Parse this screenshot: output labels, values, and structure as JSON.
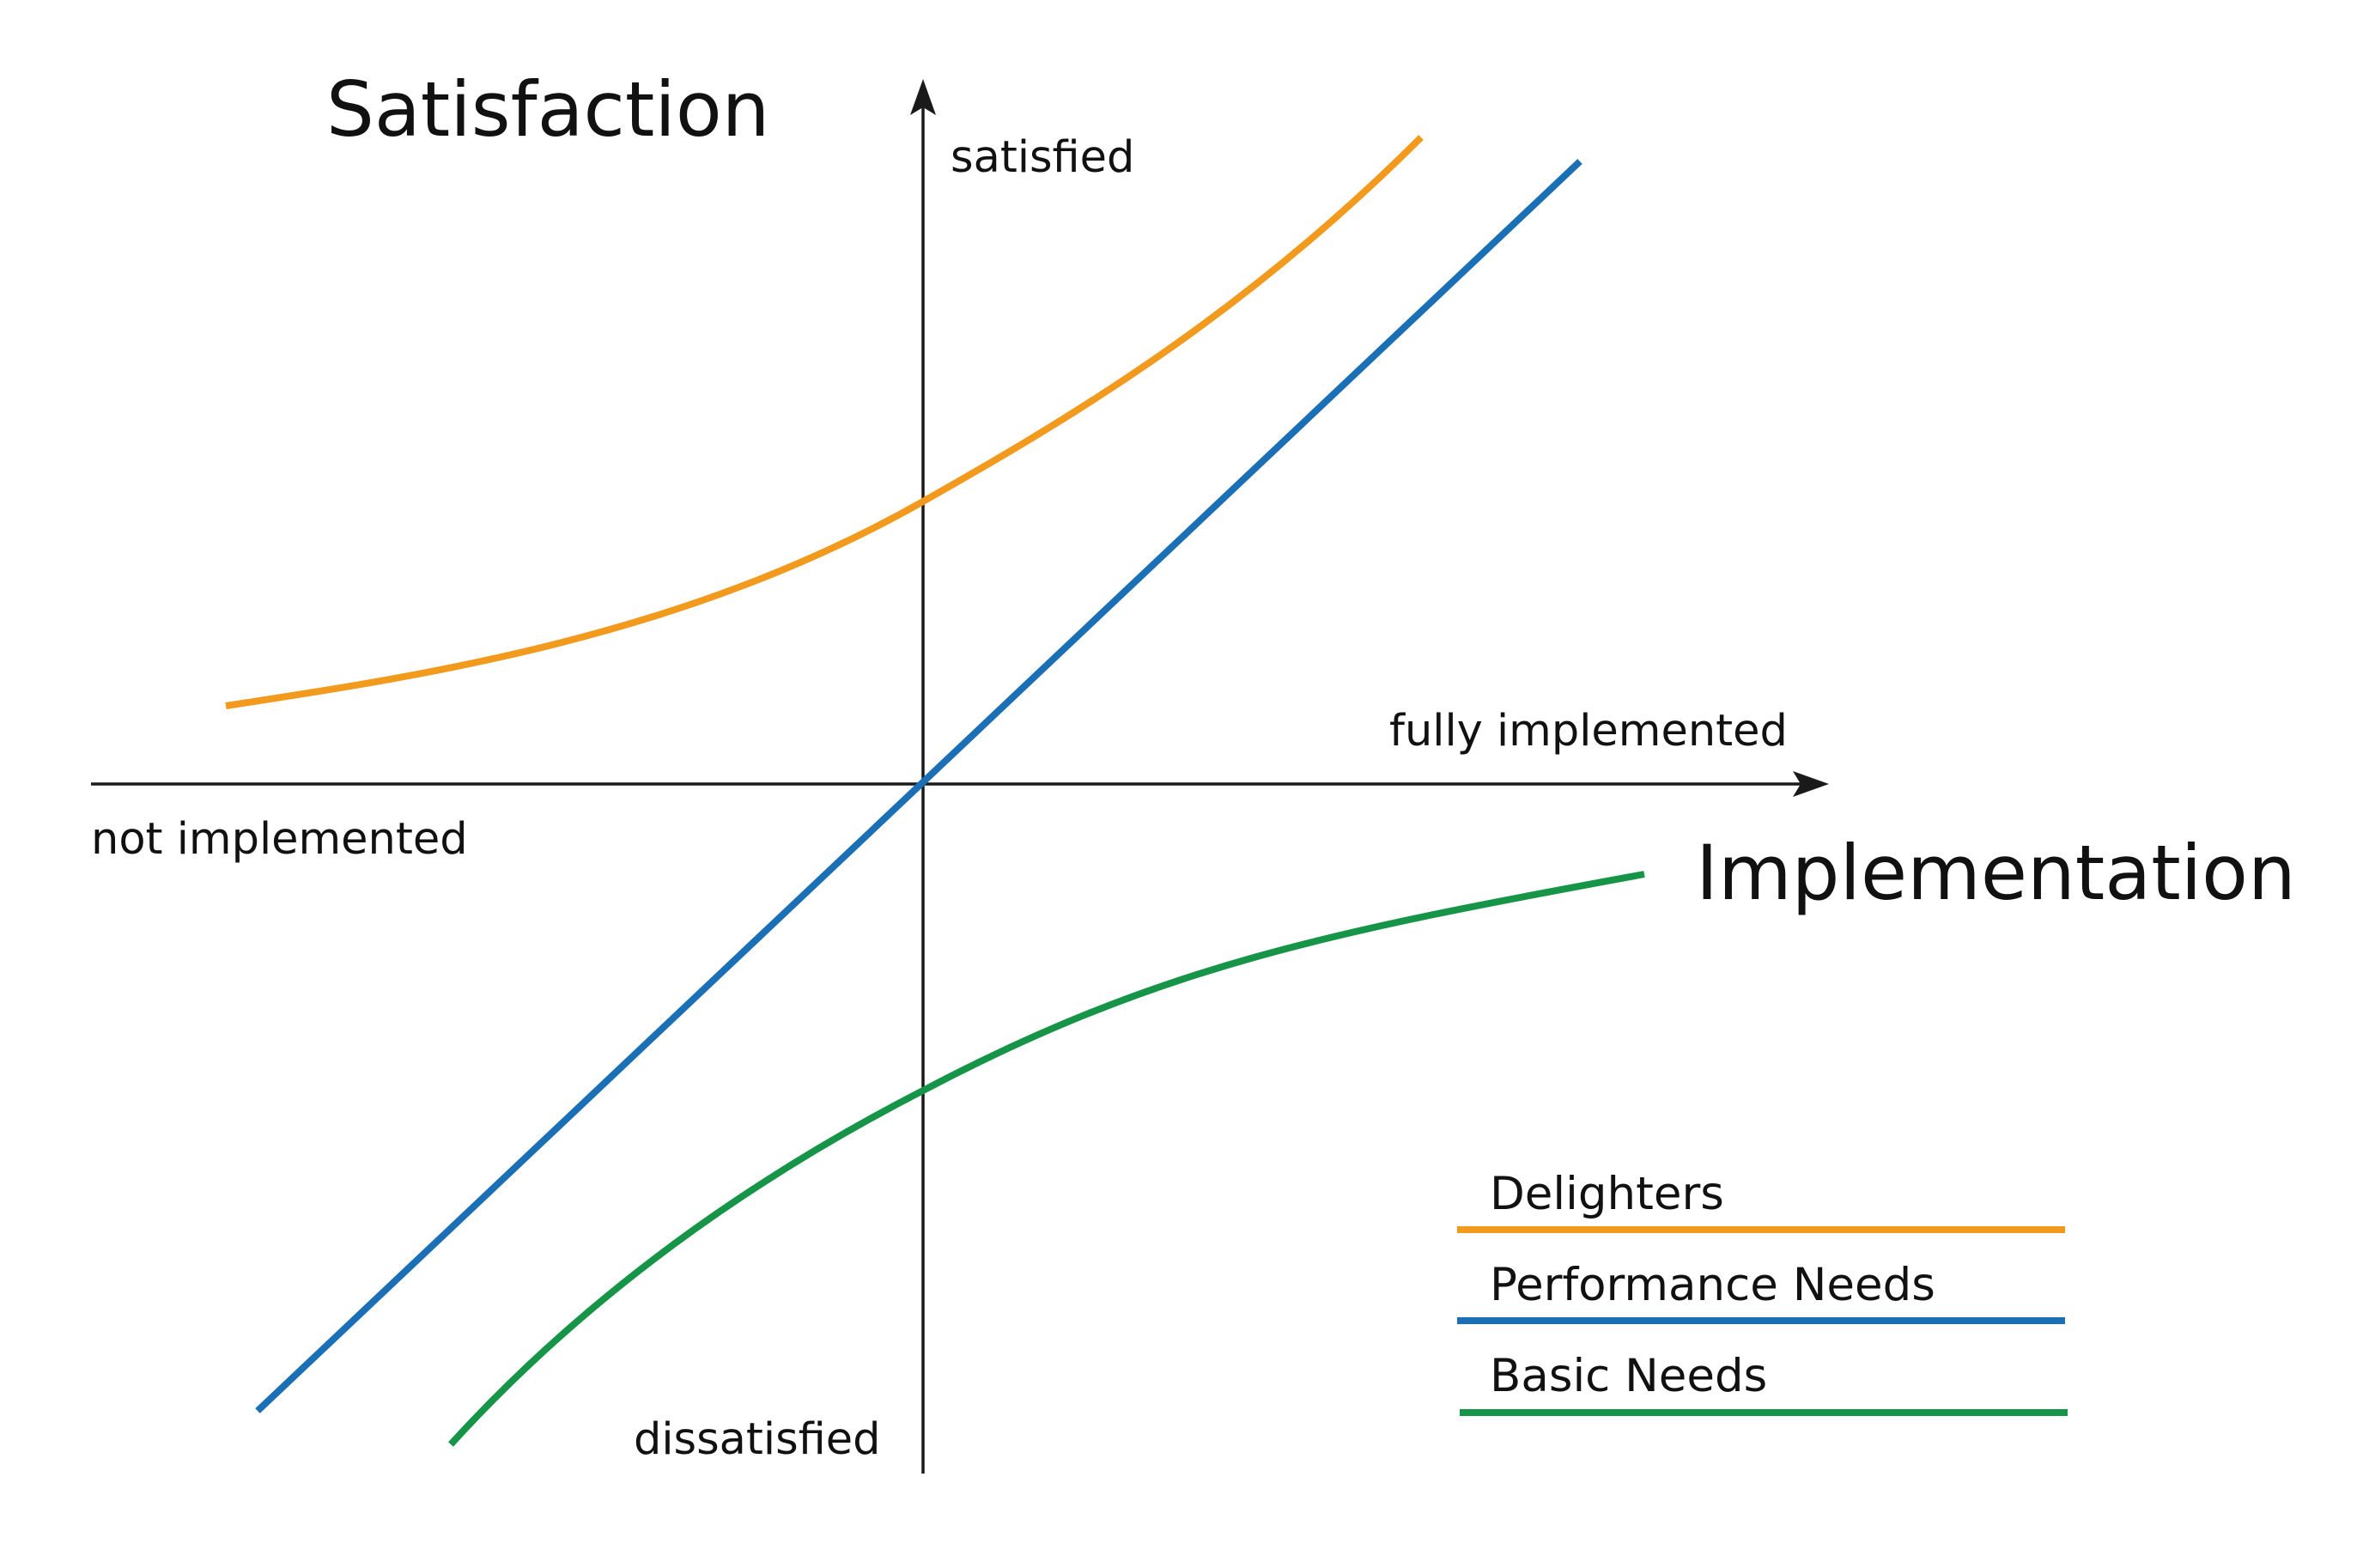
{
  "titles": {
    "y_axis_title": "Satisfaction",
    "x_axis_title": "Implementation"
  },
  "axis_labels": {
    "y_positive": "satisfied",
    "y_negative": "dissatisfied",
    "x_positive": "fully implemented",
    "x_negative": "not implemented"
  },
  "legend": [
    {
      "label": "Delighters",
      "color": "#f29a1d"
    },
    {
      "label": "Performance Needs",
      "color": "#1b6fb5"
    },
    {
      "label": "Basic Needs",
      "color": "#169447"
    }
  ],
  "colors": {
    "axis": "#1a1a1a",
    "delighters": "#f29a1d",
    "performance": "#1b6fb5",
    "basic": "#169447"
  }
}
